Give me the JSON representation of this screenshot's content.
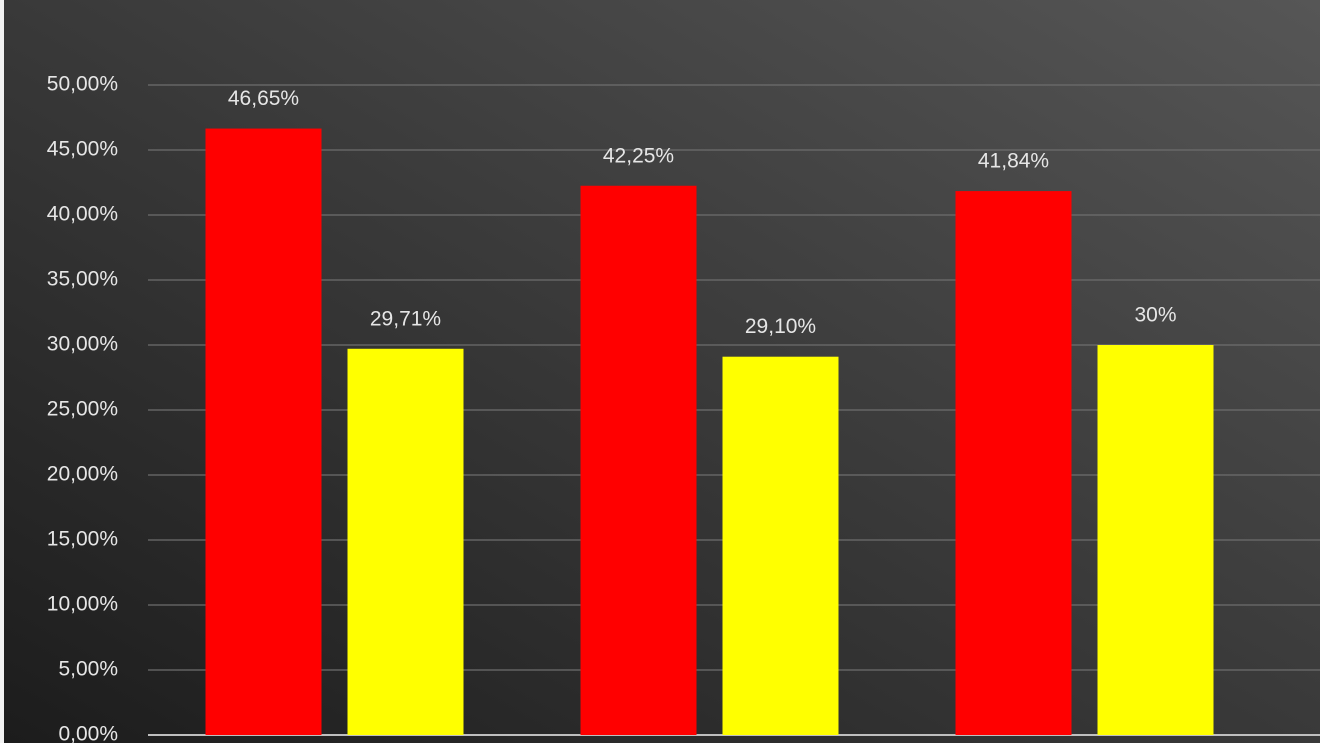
{
  "chart_data": {
    "type": "bar",
    "categories": [
      null,
      null,
      null
    ],
    "series": [
      {
        "color": "#ff0000",
        "values": [
          46.65,
          42.25,
          41.84
        ],
        "value_labels": [
          "46,65%",
          "42,25%",
          "41,84%"
        ]
      },
      {
        "color": "#ffff00",
        "values": [
          29.71,
          29.1,
          30
        ],
        "value_labels": [
          "29,71%",
          "29,10%",
          "30%"
        ]
      }
    ],
    "ylim": [
      0,
      50
    ],
    "yticks": [
      {
        "value": 0,
        "label": "0,00%"
      },
      {
        "value": 5,
        "label": "5,00%"
      },
      {
        "value": 10,
        "label": "10,00%"
      },
      {
        "value": 15,
        "label": "15,00%"
      },
      {
        "value": 20,
        "label": "20,00%"
      },
      {
        "value": 25,
        "label": "25,00%"
      },
      {
        "value": 30,
        "label": "30,00%"
      },
      {
        "value": 35,
        "label": "35,00%"
      },
      {
        "value": 40,
        "label": "40,00%"
      },
      {
        "value": 45,
        "label": "45,00%"
      },
      {
        "value": 50,
        "label": "50,00%"
      }
    ],
    "grid": true
  }
}
